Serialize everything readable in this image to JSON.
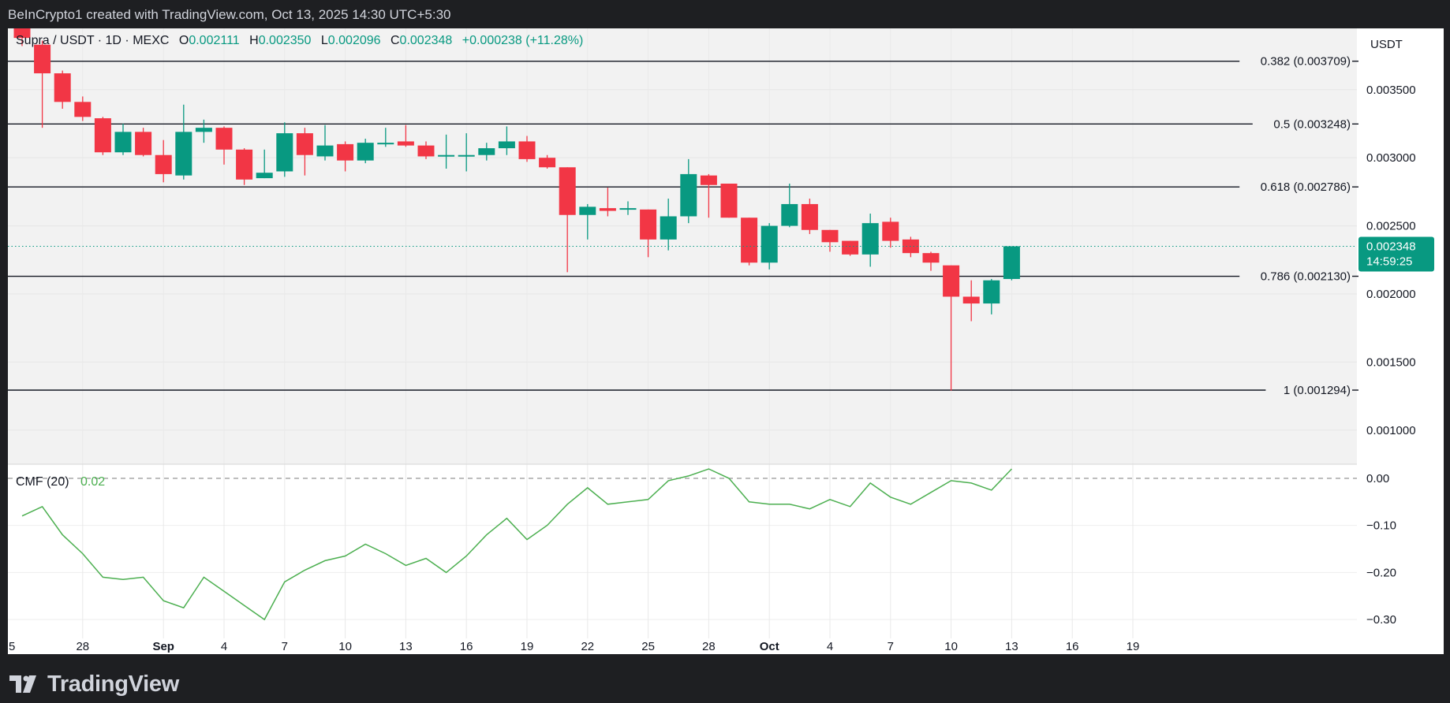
{
  "header": {
    "attribution": "BeInCrypto1 created with TradingView.com, Oct 13, 2025 14:30 UTC+5:30"
  },
  "legend": {
    "symbol": "Supra / USDT · 1D · MEXC",
    "o_label": "O",
    "o_value": "0.002111",
    "h_label": "H",
    "h_value": "0.002350",
    "l_label": "L",
    "l_value": "0.002096",
    "c_label": "C",
    "c_value": "0.002348",
    "change": "+0.000238 (+11.28%)"
  },
  "price_axis": {
    "currency": "USDT",
    "ticks": [
      "0.003500",
      "0.003000",
      "0.002500",
      "0.002000",
      "0.001500",
      "0.001000"
    ],
    "current_price": "0.002348",
    "countdown": "14:59:25"
  },
  "fib_levels": [
    {
      "label": "0.382 (0.003709)",
      "value": 0.003709
    },
    {
      "label": "0.5 (0.003248)",
      "value": 0.003248
    },
    {
      "label": "0.618 (0.002786)",
      "value": 0.002786
    },
    {
      "label": "0.786 (0.002130)",
      "value": 0.00213
    },
    {
      "label": "1 (0.001294)",
      "value": 0.001294
    }
  ],
  "indicator": {
    "name": "CMF (20)",
    "value": "0.02",
    "ticks": [
      "0.00",
      "−0.10",
      "−0.20",
      "−0.30"
    ]
  },
  "time_axis": {
    "labels": [
      "5",
      "28",
      "Sep",
      "4",
      "7",
      "10",
      "13",
      "16",
      "19",
      "22",
      "25",
      "28",
      "Oct",
      "4",
      "7",
      "10",
      "13",
      "16",
      "19"
    ]
  },
  "footer": {
    "brand": "TradingView"
  },
  "colors": {
    "up": "#089981",
    "down": "#f23645",
    "cmf": "#4caf50",
    "background": "#f2f2f2",
    "frame": "#1e1f22"
  },
  "chart_data": [
    {
      "type": "candlestick",
      "title": "Supra / USDT · 1D · MEXC",
      "ylabel": "USDT",
      "ylim": [
        0.00075,
        0.00395
      ],
      "x": [
        "Aug 25",
        "Aug 26",
        "Aug 27",
        "Aug 28",
        "Aug 29",
        "Aug 30",
        "Aug 31",
        "Sep 1",
        "Sep 2",
        "Sep 3",
        "Sep 4",
        "Sep 5",
        "Sep 6",
        "Sep 7",
        "Sep 8",
        "Sep 9",
        "Sep 10",
        "Sep 11",
        "Sep 12",
        "Sep 13",
        "Sep 14",
        "Sep 15",
        "Sep 16",
        "Sep 17",
        "Sep 18",
        "Sep 19",
        "Sep 20",
        "Sep 21",
        "Sep 22",
        "Sep 23",
        "Sep 24",
        "Sep 25",
        "Sep 26",
        "Sep 27",
        "Sep 28",
        "Sep 29",
        "Sep 30",
        "Oct 1",
        "Oct 2",
        "Oct 3",
        "Oct 4",
        "Oct 5",
        "Oct 6",
        "Oct 7",
        "Oct 8",
        "Oct 9",
        "Oct 10",
        "Oct 11",
        "Oct 12",
        "Oct 13"
      ],
      "ohlc": [
        [
          0.00395,
          0.00395,
          0.00382,
          0.00388
        ],
        [
          0.00383,
          0.00386,
          0.00322,
          0.00362
        ],
        [
          0.00362,
          0.00364,
          0.00336,
          0.00341
        ],
        [
          0.00341,
          0.00345,
          0.00327,
          0.0033
        ],
        [
          0.00329,
          0.0033,
          0.00302,
          0.00304
        ],
        [
          0.00304,
          0.00325,
          0.00302,
          0.00319
        ],
        [
          0.00319,
          0.00322,
          0.00301,
          0.00302
        ],
        [
          0.00302,
          0.00313,
          0.00282,
          0.00288
        ],
        [
          0.00287,
          0.00339,
          0.00284,
          0.00319
        ],
        [
          0.00319,
          0.00328,
          0.00311,
          0.00322
        ],
        [
          0.00322,
          0.00323,
          0.00295,
          0.00306
        ],
        [
          0.00306,
          0.00307,
          0.0028,
          0.00284
        ],
        [
          0.00285,
          0.00306,
          0.00285,
          0.00289
        ],
        [
          0.0029,
          0.00326,
          0.00286,
          0.00318
        ],
        [
          0.00318,
          0.00322,
          0.00287,
          0.00302
        ],
        [
          0.00301,
          0.00324,
          0.00298,
          0.00309
        ],
        [
          0.0031,
          0.00312,
          0.0029,
          0.00298
        ],
        [
          0.00298,
          0.00314,
          0.00296,
          0.00311
        ],
        [
          0.00311,
          0.00322,
          0.00308,
          0.00311
        ],
        [
          0.00312,
          0.00324,
          0.00308,
          0.00309
        ],
        [
          0.00309,
          0.00312,
          0.00299,
          0.00301
        ],
        [
          0.00302,
          0.00317,
          0.00292,
          0.00302
        ],
        [
          0.00302,
          0.00318,
          0.0029,
          0.00302
        ],
        [
          0.00302,
          0.00311,
          0.00298,
          0.00307
        ],
        [
          0.00307,
          0.00323,
          0.00302,
          0.00312
        ],
        [
          0.00312,
          0.00316,
          0.00297,
          0.00299
        ],
        [
          0.003,
          0.00302,
          0.00292,
          0.00293
        ],
        [
          0.00293,
          0.00293,
          0.00216,
          0.00258
        ],
        [
          0.00258,
          0.00266,
          0.0024,
          0.00264
        ],
        [
          0.00263,
          0.00278,
          0.00257,
          0.00261
        ],
        [
          0.00262,
          0.00268,
          0.00258,
          0.00263
        ],
        [
          0.00262,
          0.00262,
          0.00227,
          0.0024
        ],
        [
          0.0024,
          0.0027,
          0.00232,
          0.00257
        ],
        [
          0.00257,
          0.00299,
          0.00252,
          0.00288
        ],
        [
          0.00287,
          0.00288,
          0.00256,
          0.0028
        ],
        [
          0.00281,
          0.00281,
          0.00256,
          0.00256
        ],
        [
          0.00256,
          0.00256,
          0.00221,
          0.00223
        ],
        [
          0.00223,
          0.00252,
          0.00218,
          0.0025
        ],
        [
          0.0025,
          0.00281,
          0.00249,
          0.00266
        ],
        [
          0.00266,
          0.0027,
          0.00244,
          0.00247
        ],
        [
          0.00247,
          0.00247,
          0.00231,
          0.00238
        ],
        [
          0.00239,
          0.00239,
          0.00228,
          0.00229
        ],
        [
          0.00229,
          0.00259,
          0.0022,
          0.00252
        ],
        [
          0.00253,
          0.00256,
          0.00234,
          0.00239
        ],
        [
          0.0024,
          0.00242,
          0.00227,
          0.0023
        ],
        [
          0.0023,
          0.00231,
          0.00217,
          0.00223
        ],
        [
          0.00221,
          0.00221,
          0.00129,
          0.00198
        ],
        [
          0.00198,
          0.0021,
          0.0018,
          0.00193
        ],
        [
          0.00193,
          0.00211,
          0.00185,
          0.0021
        ],
        [
          0.00211,
          0.00235,
          0.0021,
          0.00235
        ]
      ]
    },
    {
      "type": "line",
      "title": "CMF (20)",
      "ylim": [
        -0.34,
        0.03
      ],
      "x": [
        "Aug 25",
        "Aug 26",
        "Aug 27",
        "Aug 28",
        "Aug 29",
        "Aug 30",
        "Aug 31",
        "Sep 1",
        "Sep 2",
        "Sep 3",
        "Sep 4",
        "Sep 5",
        "Sep 6",
        "Sep 7",
        "Sep 8",
        "Sep 9",
        "Sep 10",
        "Sep 11",
        "Sep 12",
        "Sep 13",
        "Sep 14",
        "Sep 15",
        "Sep 16",
        "Sep 17",
        "Sep 18",
        "Sep 19",
        "Sep 20",
        "Sep 21",
        "Sep 22",
        "Sep 23",
        "Sep 24",
        "Sep 25",
        "Sep 26",
        "Sep 27",
        "Sep 28",
        "Sep 29",
        "Sep 30",
        "Oct 1",
        "Oct 2",
        "Oct 3",
        "Oct 4",
        "Oct 5",
        "Oct 6",
        "Oct 7",
        "Oct 8",
        "Oct 9",
        "Oct 10",
        "Oct 11",
        "Oct 12",
        "Oct 13"
      ],
      "values": [
        -0.08,
        -0.06,
        -0.12,
        -0.16,
        -0.21,
        -0.215,
        -0.21,
        -0.26,
        -0.275,
        -0.21,
        -0.24,
        -0.27,
        -0.3,
        -0.22,
        -0.195,
        -0.175,
        -0.165,
        -0.14,
        -0.16,
        -0.185,
        -0.17,
        -0.2,
        -0.165,
        -0.12,
        -0.085,
        -0.13,
        -0.1,
        -0.055,
        -0.02,
        -0.055,
        -0.05,
        -0.045,
        -0.005,
        0.005,
        0.02,
        0.0,
        -0.05,
        -0.055,
        -0.055,
        -0.065,
        -0.045,
        -0.06,
        -0.01,
        -0.04,
        -0.055,
        -0.03,
        -0.005,
        -0.01,
        -0.025,
        0.02
      ],
      "zero_line": true
    }
  ]
}
